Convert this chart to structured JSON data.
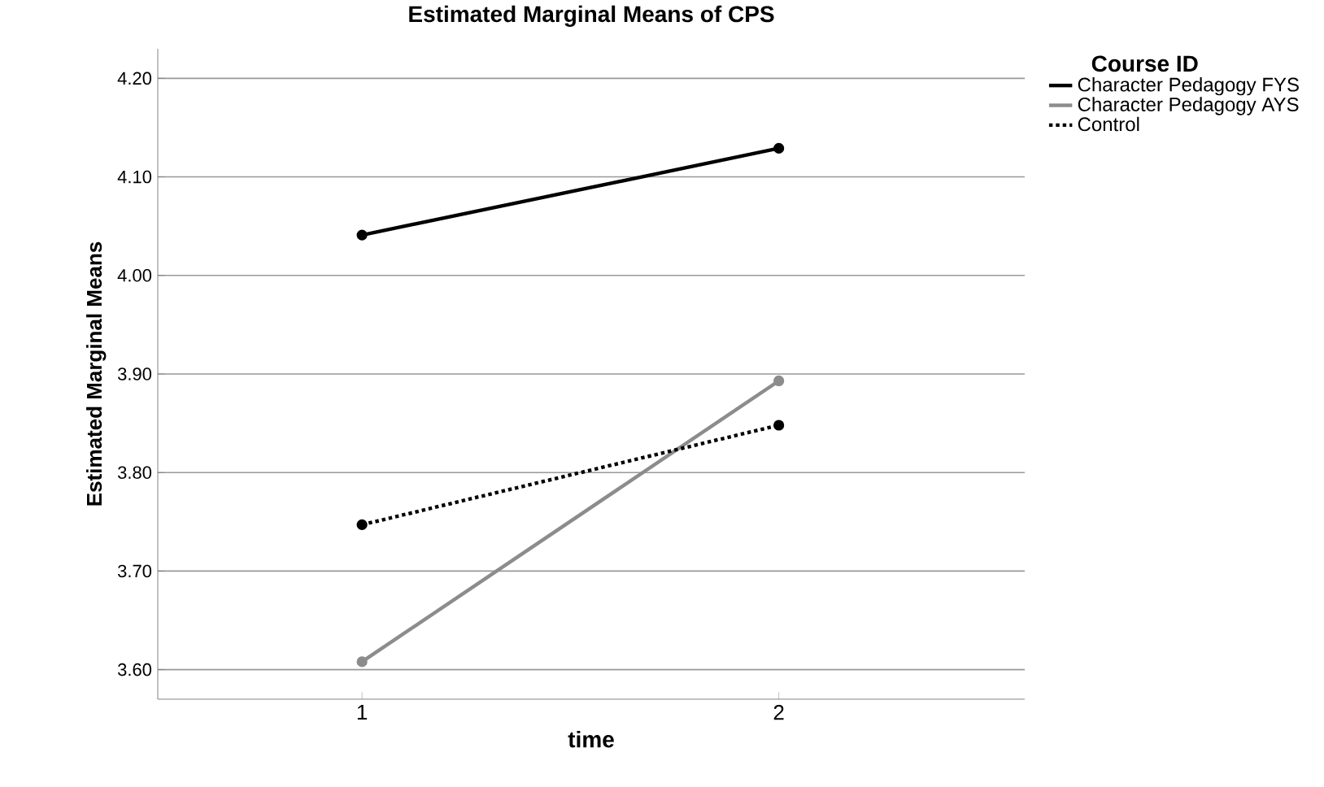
{
  "chart_data": {
    "type": "line",
    "title": "Estimated Marginal Means of CPS",
    "xlabel": "time",
    "ylabel": "Estimated Marginal Means",
    "legend_title": "Course ID",
    "categories": [
      "1",
      "2"
    ],
    "series": [
      {
        "name": "Character Pedagogy FYS",
        "color": "#000000",
        "values": [
          4.041,
          4.129
        ],
        "line_style": "solid"
      },
      {
        "name": "Character Pedagogy AYS",
        "color": "#8c8c8c",
        "values": [
          3.608,
          3.893
        ],
        "line_style": "solid"
      },
      {
        "name": "Control",
        "color": "#000000",
        "values": [
          3.747,
          3.848
        ],
        "line_style": "dotted"
      }
    ],
    "ylim": [
      3.57,
      4.23
    ],
    "yticks": [
      {
        "value": 3.6,
        "label": "3.60"
      },
      {
        "value": 3.7,
        "label": "3.70"
      },
      {
        "value": 3.8,
        "label": "3.80"
      },
      {
        "value": 3.9,
        "label": "3.90"
      },
      {
        "value": 4.0,
        "label": "4.00"
      },
      {
        "value": 4.1,
        "label": "4.10"
      },
      {
        "value": 4.2,
        "label": "4.20"
      }
    ],
    "grid": "y",
    "legend": "top right",
    "marker": "circle"
  }
}
